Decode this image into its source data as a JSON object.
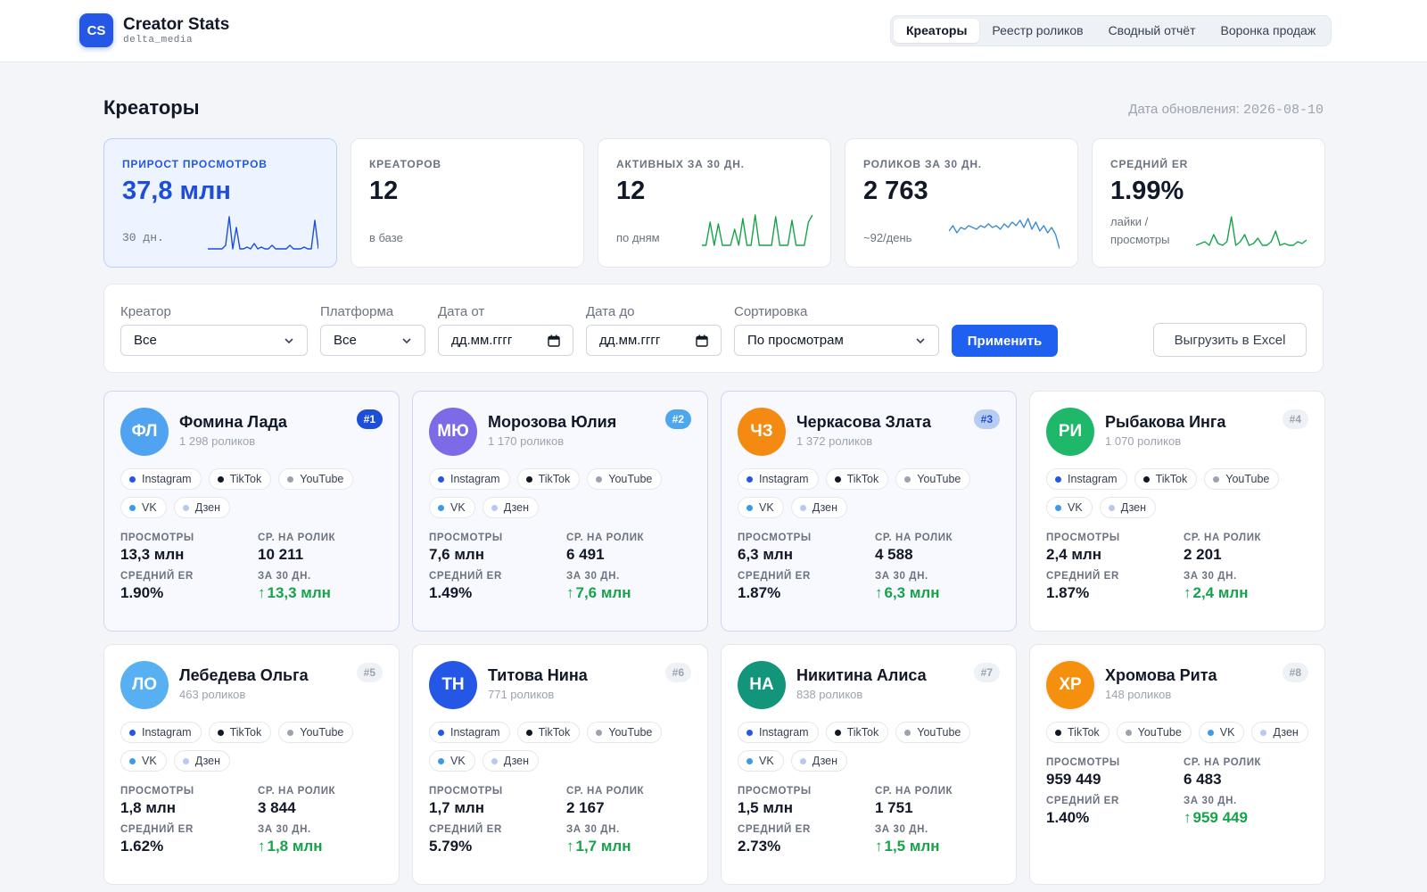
{
  "brand": {
    "logo": "CS",
    "title": "Creator Stats",
    "subtitle": "delta_media"
  },
  "nav": {
    "tabs": [
      {
        "label": "Креаторы",
        "active": true
      },
      {
        "label": "Реестр роликов",
        "active": false
      },
      {
        "label": "Сводный отчёт",
        "active": false
      },
      {
        "label": "Воронка продаж",
        "active": false
      }
    ]
  },
  "page": {
    "title": "Креаторы",
    "updated_label": "Дата обновления:",
    "updated_date": "2026-08-10"
  },
  "kpis": [
    {
      "label": "ПРИРОСТ ПРОСМОТРОВ",
      "value": "37,8 млн",
      "sub": "30 дн.",
      "color": "#1d4ed8",
      "spark": [
        0,
        0,
        0,
        0,
        0,
        0.1,
        0.9,
        0,
        0.6,
        0,
        0,
        0.05,
        0,
        0.15,
        0,
        0.05,
        0,
        0,
        0.1,
        0,
        0,
        0,
        0,
        0.1,
        0,
        0,
        0,
        0.05,
        0,
        0,
        0.8,
        0
      ]
    },
    {
      "label": "КРЕАТОРОВ",
      "value": "12",
      "sub": "в базе"
    },
    {
      "label": "АКТИВНЫХ ЗА 30 ДН.",
      "value": "12",
      "sub": "по дням",
      "color": "#16a34a",
      "spark": [
        0.1,
        0.1,
        0.75,
        0.1,
        0.7,
        0.1,
        0.1,
        0.1,
        0.55,
        0.1,
        0.85,
        0.1,
        0.1,
        0.95,
        0.1,
        0.1,
        0.1,
        0.1,
        0.9,
        0.1,
        0.1,
        0.1,
        0.8,
        0.1,
        0.1,
        0.1,
        0.75,
        0.95
      ]
    },
    {
      "label": "РОЛИКОВ ЗА 30 ДН.",
      "value": "2 763",
      "sub": "~92/день",
      "color": "#3b8ad9",
      "spark": [
        0.5,
        0.65,
        0.45,
        0.6,
        0.55,
        0.65,
        0.6,
        0.55,
        0.65,
        0.6,
        0.7,
        0.6,
        0.65,
        0.55,
        0.7,
        0.6,
        0.75,
        0.65,
        0.8,
        0.6,
        0.85,
        0.55,
        0.75,
        0.5,
        0.65,
        0.45,
        0.6,
        0.4,
        0.0
      ]
    },
    {
      "label": "СРЕДНИЙ ER",
      "value": "1.99%",
      "sub": "лайки / просмотры",
      "color": "#16a34a",
      "spark": [
        0.1,
        0.15,
        0.2,
        0.1,
        0.4,
        0.15,
        0.1,
        0.2,
        0.9,
        0.1,
        0.2,
        0.4,
        0.1,
        0.15,
        0.3,
        0.1,
        0.1,
        0.2,
        0.5,
        0.1,
        0.15,
        0.1,
        0.1,
        0.2,
        0.15,
        0.25
      ]
    }
  ],
  "filters": {
    "creator": {
      "label": "Креатор",
      "value": "Все"
    },
    "platform": {
      "label": "Платформа",
      "value": "Все"
    },
    "date_from": {
      "label": "Дата от",
      "placeholder": "дд.мм.гггг"
    },
    "date_to": {
      "label": "Дата до",
      "placeholder": "дд.мм.гггг"
    },
    "sort": {
      "label": "Сортировка",
      "value": "По просмотрам"
    },
    "apply_label": "Применить",
    "export_label": "Выгрузить в Excel"
  },
  "stat_labels": {
    "views": "ПРОСМОТРЫ",
    "avg": "СР. НА РОЛИК",
    "er": "СРЕДНИЙ ER",
    "d30": "ЗА 30 ДН."
  },
  "platform_colors": {
    "Instagram": "#2457e6",
    "TikTok": "#111827",
    "YouTube": "#9ca3af",
    "VK": "#3b9be8",
    "Дзен": "#b8c9ef"
  },
  "creators": [
    {
      "initials": "ФЛ",
      "avatar_color": "#4fa3f0",
      "name": "Фомина Лада",
      "count": "1 298 роликов",
      "rank": "#1",
      "rank_bg": "#1d4ed8",
      "rank_fg": "#ffffff",
      "platforms": [
        "Instagram",
        "TikTok",
        "YouTube",
        "VK",
        "Дзен"
      ],
      "views": "13,3 млн",
      "avg": "10 211",
      "er": "1.90%",
      "d30": "13,3 млн"
    },
    {
      "initials": "МЮ",
      "avatar_color": "#7c6ae6",
      "name": "Морозова Юлия",
      "count": "1 170 роликов",
      "rank": "#2",
      "rank_bg": "#4ea6ec",
      "rank_fg": "#ffffff",
      "platforms": [
        "Instagram",
        "TikTok",
        "YouTube",
        "VK",
        "Дзен"
      ],
      "views": "7,6 млн",
      "avg": "6 491",
      "er": "1.49%",
      "d30": "7,6 млн"
    },
    {
      "initials": "ЧЗ",
      "avatar_color": "#f58a12",
      "name": "Черкасова Злата",
      "count": "1 372 роликов",
      "rank": "#3",
      "rank_bg": "#b7ccf3",
      "rank_fg": "#1d4ed8",
      "platforms": [
        "Instagram",
        "TikTok",
        "YouTube",
        "VK",
        "Дзен"
      ],
      "views": "6,3 млн",
      "avg": "4 588",
      "er": "1.87%",
      "d30": "6,3 млн"
    },
    {
      "initials": "РИ",
      "avatar_color": "#1fb86a",
      "name": "Рыбакова Инга",
      "count": "1 070 роликов",
      "rank": "#4",
      "platforms": [
        "Instagram",
        "TikTok",
        "YouTube",
        "VK",
        "Дзен"
      ],
      "views": "2,4 млн",
      "avg": "2 201",
      "er": "1.87%",
      "d30": "2,4 млн"
    },
    {
      "initials": "ЛО",
      "avatar_color": "#56b0f2",
      "name": "Лебедева Ольга",
      "count": "463 роликов",
      "rank": "#5",
      "platforms": [
        "Instagram",
        "TikTok",
        "YouTube",
        "VK",
        "Дзен"
      ],
      "views": "1,8 млн",
      "avg": "3 844",
      "er": "1.62%",
      "d30": "1,8 млн"
    },
    {
      "initials": "ТН",
      "avatar_color": "#2457e6",
      "name": "Титова Нина",
      "count": "771 роликов",
      "rank": "#6",
      "platforms": [
        "Instagram",
        "TikTok",
        "YouTube",
        "VK",
        "Дзен"
      ],
      "views": "1,7 млн",
      "avg": "2 167",
      "er": "5.79%",
      "d30": "1,7 млн"
    },
    {
      "initials": "НА",
      "avatar_color": "#12957a",
      "name": "Никитина Алиса",
      "count": "838 роликов",
      "rank": "#7",
      "platforms": [
        "Instagram",
        "TikTok",
        "YouTube",
        "VK",
        "Дзен"
      ],
      "views": "1,5 млн",
      "avg": "1 751",
      "er": "2.73%",
      "d30": "1,5 млн"
    },
    {
      "initials": "ХР",
      "avatar_color": "#f5900f",
      "name": "Хромова Рита",
      "count": "148 роликов",
      "rank": "#8",
      "platforms": [
        "TikTok",
        "YouTube",
        "VK",
        "Дзен"
      ],
      "views": "959 449",
      "avg": "6 483",
      "er": "1.40%",
      "d30": "959 449"
    }
  ]
}
